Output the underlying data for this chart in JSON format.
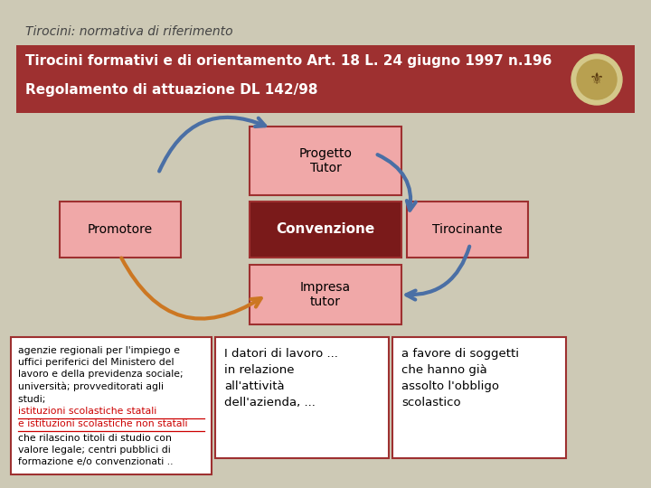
{
  "bg_color": "#cdc9b5",
  "title": "Tirocini: normativa di riferimento",
  "title_fontsize": 10,
  "header_bg": "#9e3030",
  "header_text_line1": "Tirocini formativi e di orientamento Art. 18 L. 24 giugno 1997 n.196",
  "header_text_line2": "Regolamento di attuazione DL 142/98",
  "header_fontsize": 11,
  "header_text_color": "#ffffff",
  "box_light_pink": "#f0a8a8",
  "box_dark_red": "#7a1a1a",
  "box_border_color": "#9e3030",
  "box_text_color": "#000000",
  "convezione_text_color": "#ffffff",
  "progetto_tutor_label": "Progetto\nTutor",
  "convenzione_label": "Convenzione",
  "promotore_label": "Promotore",
  "impresa_tutor_label": "Impresa\ntutor",
  "tirocinante_label": "Tirocinante",
  "bottom_box_bg": "#ffffff",
  "bottom_box_border": "#9e3030",
  "arrow_blue": "#4a6fa5",
  "arrow_orange": "#cc7722",
  "bottom_box1_text_a": "agenzie regionali per l'impiego e\nuffici periferici del Ministero del\nlavoro e della previdenza sociale;\nuniversità; provveditorati agli\nstudi; ",
  "bottom_box1_text_b": "istituzioni scolastiche statali\ne istituzioni scolastiche non statali",
  "bottom_box1_text_c": "che rilascino titoli di studio con\nvalore legale; centri pubblici di\nformazione e/o convenzionati ..",
  "bottom_box2_text": "I datori di lavoro ...\nin relazione\nall'attività\ndell'azienda, ...",
  "bottom_box3_text": "a favore di soggetti\nche hanno già\nassolto l'obbligo\nscolastico"
}
